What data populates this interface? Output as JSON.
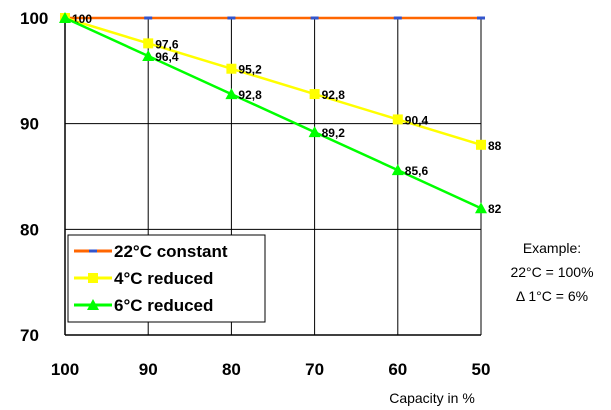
{
  "chart_data": {
    "type": "line",
    "x": [
      100,
      90,
      80,
      70,
      60,
      50
    ],
    "xlabel": "Capacity in %",
    "ylabel": "",
    "title": "",
    "xlim": [
      100,
      50
    ],
    "ylim": [
      70,
      100
    ],
    "x_ticks": [
      "100",
      "90",
      "80",
      "70",
      "60",
      "50"
    ],
    "y_ticks": [
      "100",
      "90",
      "80",
      "70"
    ],
    "grid": true,
    "legend_position": "bottom-left",
    "series": [
      {
        "name": "22°C constant",
        "values": [
          100,
          100,
          100,
          100,
          100,
          100
        ],
        "labels": [],
        "color": "#ff6600",
        "marker": "dash"
      },
      {
        "name": "4°C reduced",
        "values": [
          100,
          97.6,
          95.2,
          92.8,
          90.4,
          88
        ],
        "labels": [
          "100",
          "97,6",
          "95,2",
          "92,8",
          "90,4",
          "88"
        ],
        "color": "#ffff00",
        "marker": "square"
      },
      {
        "name": "6°C reduced",
        "values": [
          100,
          96.4,
          92.8,
          89.2,
          85.6,
          82
        ],
        "labels": [
          "",
          "96,4",
          "92,8",
          "89,2",
          "85,6",
          "82"
        ],
        "color": "#00ff00",
        "marker": "triangle"
      }
    ]
  },
  "note": {
    "line1": "Example:",
    "line2": "22°C = 100%",
    "line3": "Δ 1°C = 6%"
  }
}
